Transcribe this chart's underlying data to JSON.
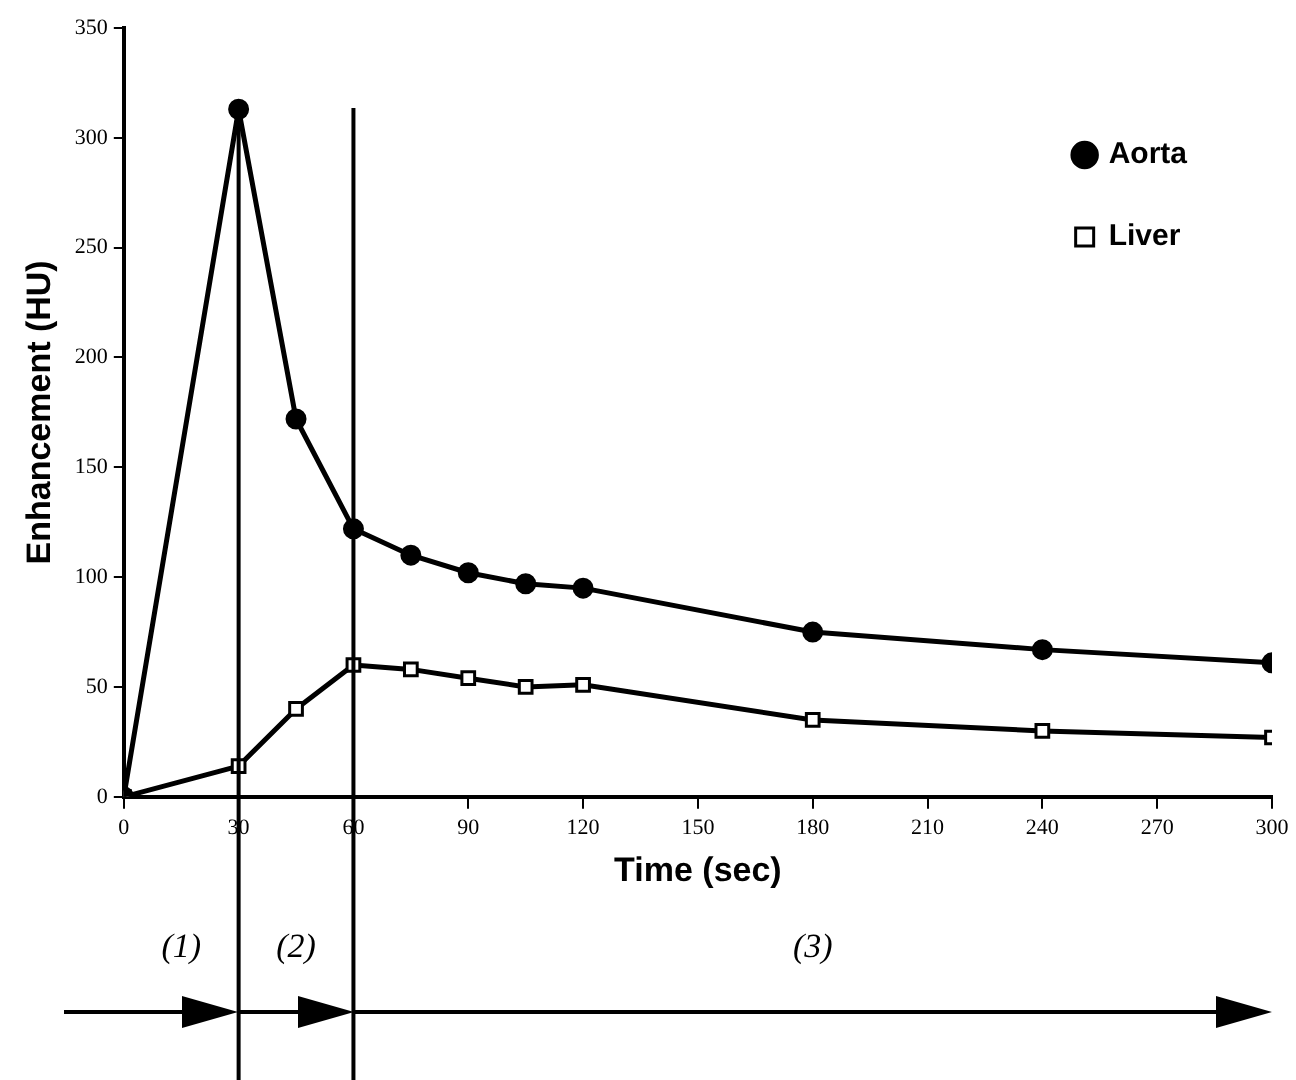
{
  "chart_data": {
    "type": "line",
    "xlabel": "Time (sec)",
    "ylabel": "Enhancement (HU)",
    "xlim": [
      0,
      300
    ],
    "xticks": [
      0,
      30,
      60,
      90,
      120,
      150,
      180,
      210,
      240,
      270,
      300
    ],
    "ylim": [
      0,
      350
    ],
    "yticks": [
      0,
      50,
      100,
      150,
      200,
      250,
      300,
      350
    ],
    "grid": false,
    "legend": "top right",
    "line_style": "solid",
    "series": [
      {
        "name": "Aorta",
        "color": "#000000",
        "marker": "circle",
        "x": [
          0,
          30,
          45,
          60,
          75,
          90,
          105,
          120,
          180,
          240,
          300
        ],
        "values": [
          0,
          313,
          172,
          122,
          110,
          102,
          97,
          95,
          75,
          67,
          61
        ]
      },
      {
        "name": "Liver",
        "color": "#000000",
        "marker": "square",
        "x": [
          0,
          30,
          45,
          60,
          75,
          90,
          105,
          120,
          180,
          240,
          300
        ],
        "values": [
          0,
          14,
          40,
          60,
          58,
          54,
          50,
          51,
          35,
          30,
          27
        ]
      }
    ],
    "ref_lines": [
      {
        "axis": "x",
        "value": 30,
        "label": null
      },
      {
        "axis": "x",
        "value": 60,
        "label": null
      }
    ],
    "annotations": [
      "(1)",
      "(2)",
      "(3)"
    ]
  }
}
